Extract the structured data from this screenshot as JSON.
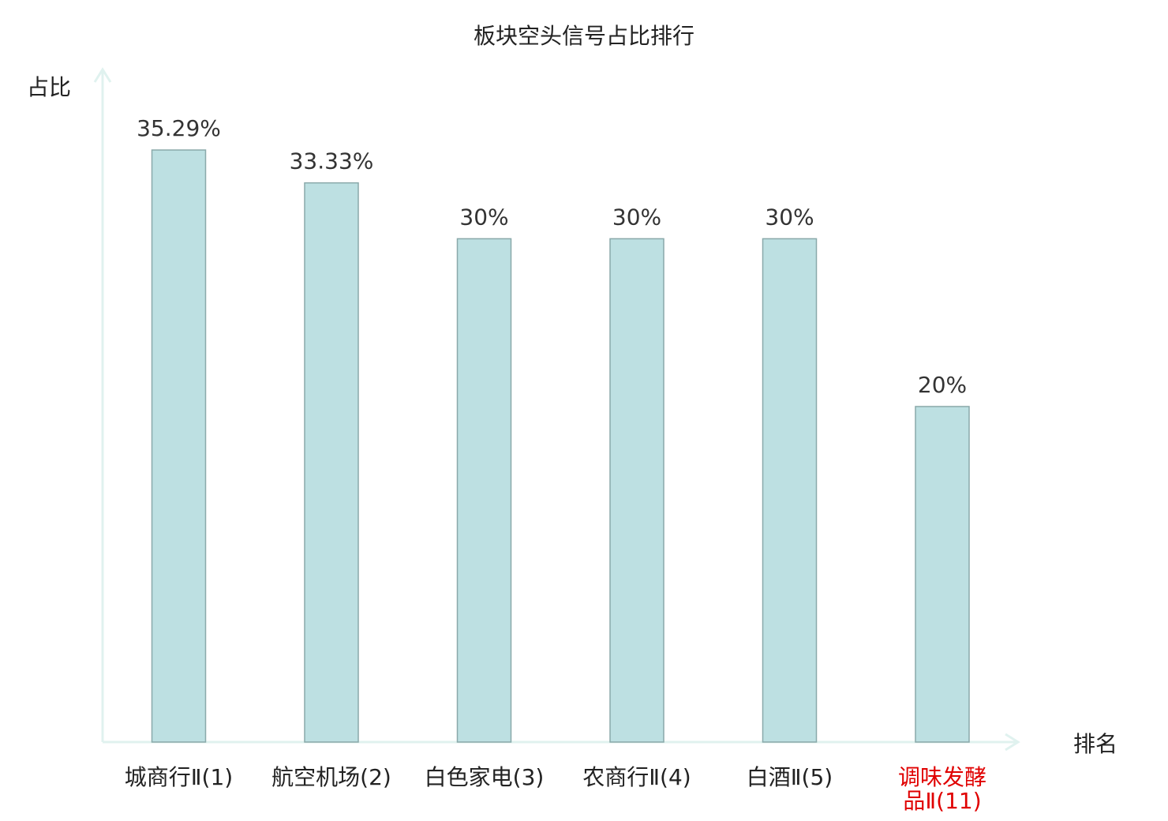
{
  "chart_data": {
    "type": "bar",
    "title": "板块空头信号占比排行",
    "ylabel": "占比",
    "xlabel": "排名",
    "categories": [
      "城商行Ⅱ(1)",
      "航空机场(2)",
      "白色家电(3)",
      "农商行Ⅱ(4)",
      "白酒Ⅱ(5)",
      "调味发酵品Ⅱ(11)"
    ],
    "values": [
      35.29,
      33.33,
      30,
      30,
      30,
      20
    ],
    "value_labels": [
      "35.29%",
      "33.33%",
      "30%",
      "30%",
      "30%",
      "20%"
    ],
    "highlight_index": 5,
    "ylim": [
      0,
      35.29
    ],
    "grid": false,
    "colors": {
      "bar_fill": "#bde0e2",
      "bar_stroke": "#8aa9aa",
      "axis": "#e0f2ef",
      "text": "#222222",
      "value_text": "#333333",
      "highlight_text": "#e00000"
    }
  }
}
